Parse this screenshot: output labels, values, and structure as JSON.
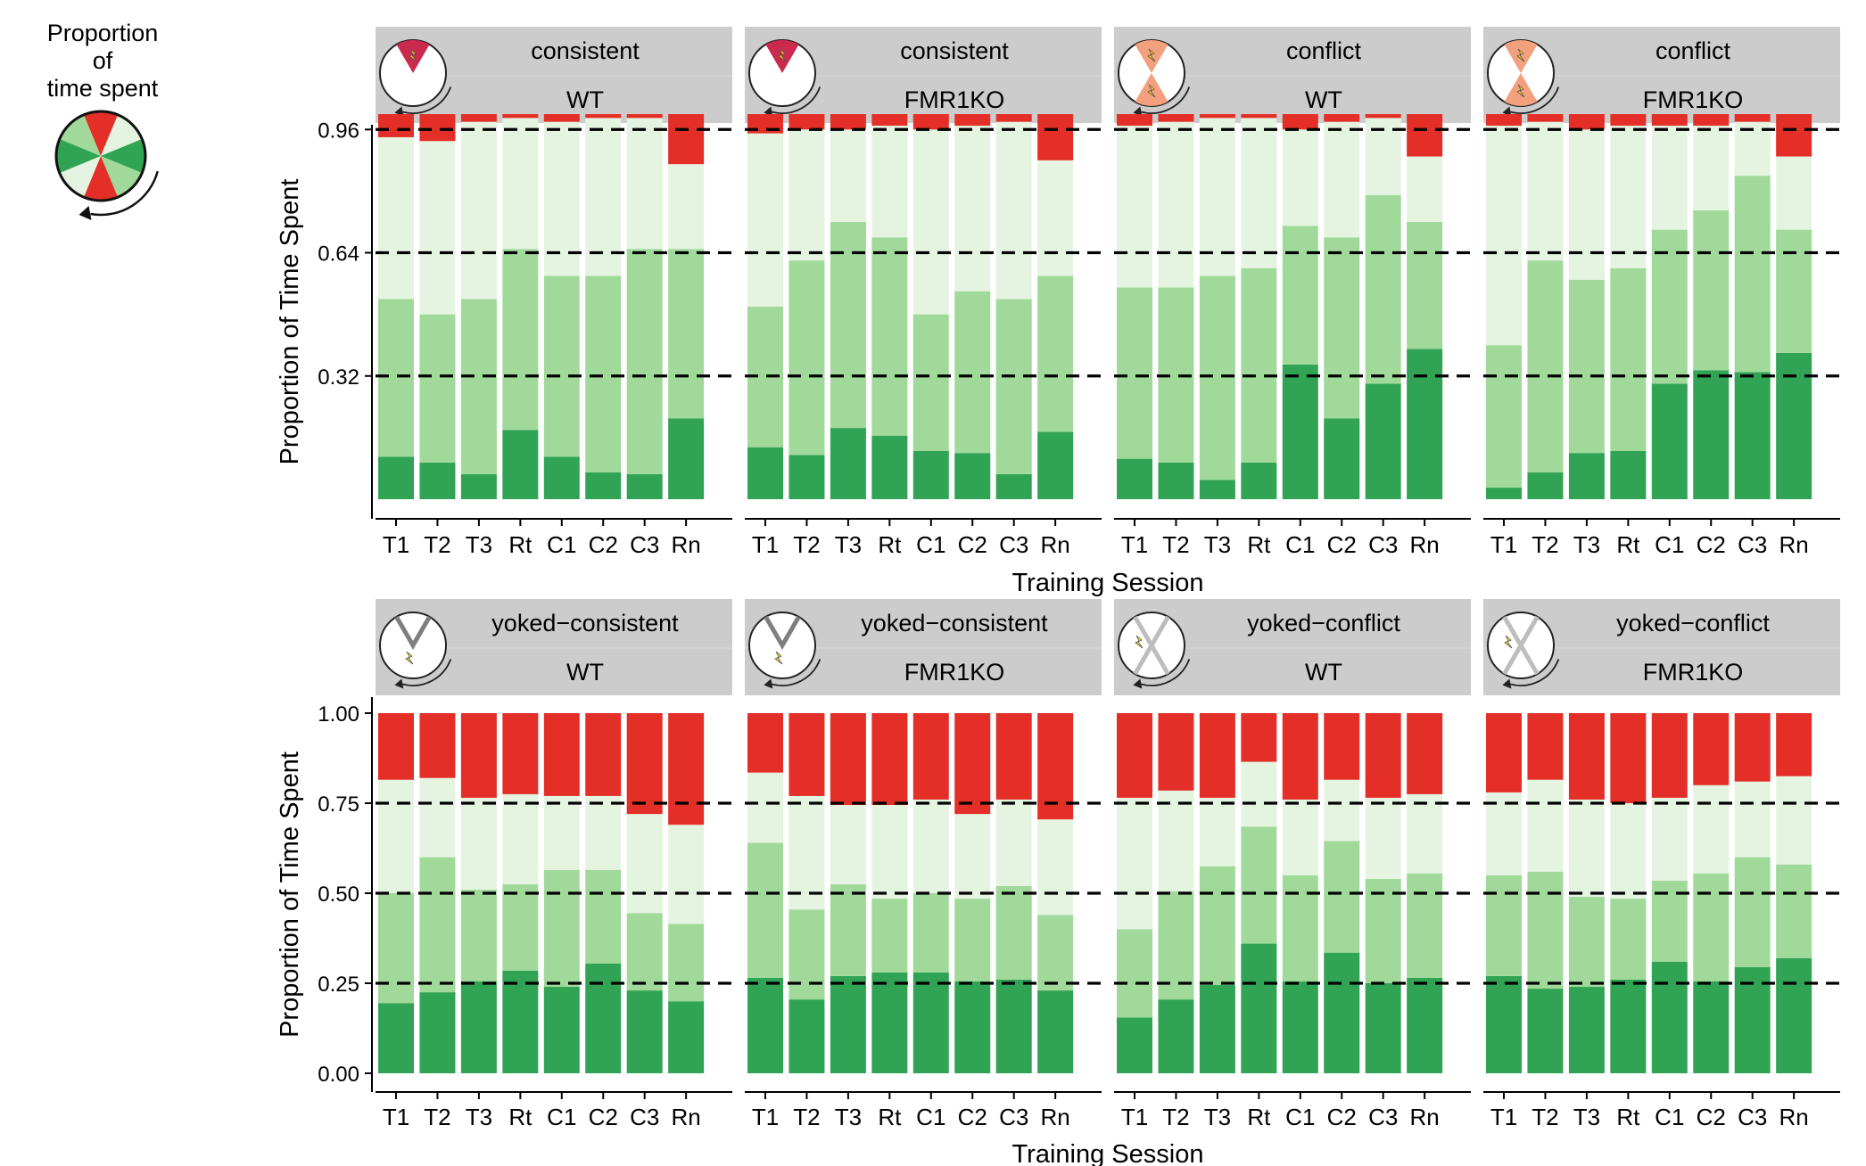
{
  "legend": {
    "title_line1": "Proportion of",
    "title_line2": "time spent",
    "sector_colors": [
      "#e32f27",
      "#e5f4e1",
      "#31a354",
      "#a1d99b"
    ]
  },
  "colors": {
    "shock": "#e32f27",
    "light": "#e5f4e1",
    "mid": "#a1d99b",
    "dark": "#31a354",
    "strip": "#cccccc",
    "icon_sector": "#cb2a4e",
    "icon_conflict": "#f3a07e",
    "icon_yoked": "#7f7f7f",
    "icon_yoked_light": "#bdbdbd",
    "bolt": "#ffd700"
  },
  "axis_titles": {
    "y": "Proportion of Time Spent",
    "x": "Training Session"
  },
  "rows": [
    {
      "y_ticks": [
        "0.32",
        "0.64",
        "0.96"
      ],
      "y_tick_values": [
        0.32,
        0.64,
        0.96
      ],
      "ylim": [
        0,
        1
      ],
      "hlines": [
        0.32,
        0.64,
        0.96
      ],
      "panels": [
        {
          "strip_top": "consistent",
          "strip_bottom": "WT",
          "icon": "consistent"
        },
        {
          "strip_top": "consistent",
          "strip_bottom": "FMR1KO",
          "icon": "consistent"
        },
        {
          "strip_top": "conflict",
          "strip_bottom": "WT",
          "icon": "conflict"
        },
        {
          "strip_top": "conflict",
          "strip_bottom": "FMR1KO",
          "icon": "conflict"
        }
      ]
    },
    {
      "y_ticks": [
        "0.00",
        "0.25",
        "0.50",
        "0.75",
        "1.00"
      ],
      "y_tick_values": [
        0,
        0.25,
        0.5,
        0.75,
        1.0
      ],
      "ylim": [
        0,
        1
      ],
      "hlines": [
        0.25,
        0.5,
        0.75
      ],
      "panels": [
        {
          "strip_top": "yoked−consistent",
          "strip_bottom": "WT",
          "icon": "yoked-consistent"
        },
        {
          "strip_top": "yoked−consistent",
          "strip_bottom": "FMR1KO",
          "icon": "yoked-consistent"
        },
        {
          "strip_top": "yoked−conflict",
          "strip_bottom": "WT",
          "icon": "yoked-conflict"
        },
        {
          "strip_top": "yoked−conflict",
          "strip_bottom": "FMR1KO",
          "icon": "yoked-conflict"
        }
      ]
    }
  ],
  "chart_data": {
    "type": "bar",
    "stacked": true,
    "categories": [
      "T1",
      "T2",
      "T3",
      "Rt",
      "C1",
      "C2",
      "C3",
      "Rn"
    ],
    "stack_order_bottom_to_top": [
      "dark",
      "mid",
      "light",
      "shock"
    ],
    "panels": [
      {
        "treatment": "consistent",
        "genotype": "WT",
        "dark": [
          0.11,
          0.095,
          0.065,
          0.18,
          0.11,
          0.07,
          0.065,
          0.21
        ],
        "mid": [
          0.52,
          0.48,
          0.52,
          0.65,
          0.58,
          0.58,
          0.65,
          0.65
        ],
        "light": [
          0.94,
          0.93,
          0.98,
          0.99,
          0.98,
          0.99,
          0.99,
          0.87
        ]
      },
      {
        "treatment": "consistent",
        "genotype": "FMR1KO",
        "dark": [
          0.135,
          0.115,
          0.185,
          0.165,
          0.125,
          0.12,
          0.065,
          0.175
        ],
        "mid": [
          0.5,
          0.62,
          0.72,
          0.68,
          0.48,
          0.54,
          0.52,
          0.58
        ],
        "light": [
          0.95,
          0.96,
          0.96,
          0.97,
          0.96,
          0.97,
          0.98,
          0.88
        ]
      },
      {
        "treatment": "conflict",
        "genotype": "WT",
        "dark": [
          0.105,
          0.095,
          0.05,
          0.095,
          0.35,
          0.21,
          0.3,
          0.39
        ],
        "mid": [
          0.55,
          0.55,
          0.58,
          0.6,
          0.71,
          0.68,
          0.79,
          0.72
        ],
        "light": [
          0.97,
          0.98,
          0.99,
          0.99,
          0.96,
          0.98,
          0.99,
          0.89
        ]
      },
      {
        "treatment": "conflict",
        "genotype": "FMR1KO",
        "dark": [
          0.03,
          0.07,
          0.12,
          0.125,
          0.3,
          0.335,
          0.33,
          0.38
        ],
        "mid": [
          0.4,
          0.62,
          0.57,
          0.6,
          0.7,
          0.75,
          0.84,
          0.7
        ],
        "light": [
          0.97,
          0.98,
          0.96,
          0.97,
          0.97,
          0.97,
          0.98,
          0.89
        ]
      },
      {
        "treatment": "yoked−consistent",
        "genotype": "WT",
        "dark": [
          0.195,
          0.225,
          0.255,
          0.285,
          0.24,
          0.305,
          0.23,
          0.2
        ],
        "mid": [
          0.5,
          0.6,
          0.51,
          0.525,
          0.565,
          0.565,
          0.445,
          0.415
        ],
        "light": [
          0.815,
          0.82,
          0.765,
          0.775,
          0.77,
          0.77,
          0.72,
          0.69
        ]
      },
      {
        "treatment": "yoked−consistent",
        "genotype": "FMR1KO",
        "dark": [
          0.265,
          0.205,
          0.27,
          0.28,
          0.28,
          0.255,
          0.26,
          0.23
        ],
        "mid": [
          0.64,
          0.455,
          0.525,
          0.485,
          0.5,
          0.485,
          0.52,
          0.44
        ],
        "light": [
          0.835,
          0.77,
          0.745,
          0.745,
          0.76,
          0.72,
          0.76,
          0.705
        ]
      },
      {
        "treatment": "yoked−conflict",
        "genotype": "WT",
        "dark": [
          0.155,
          0.205,
          0.245,
          0.36,
          0.255,
          0.335,
          0.25,
          0.265
        ],
        "mid": [
          0.4,
          0.505,
          0.575,
          0.685,
          0.55,
          0.645,
          0.54,
          0.555
        ],
        "light": [
          0.765,
          0.785,
          0.765,
          0.865,
          0.76,
          0.815,
          0.765,
          0.775
        ]
      },
      {
        "treatment": "yoked−conflict",
        "genotype": "FMR1KO",
        "dark": [
          0.27,
          0.235,
          0.24,
          0.26,
          0.31,
          0.255,
          0.295,
          0.32
        ],
        "mid": [
          0.55,
          0.56,
          0.49,
          0.485,
          0.535,
          0.555,
          0.6,
          0.58
        ],
        "light": [
          0.78,
          0.815,
          0.76,
          0.75,
          0.765,
          0.8,
          0.81,
          0.825
        ]
      }
    ]
  }
}
